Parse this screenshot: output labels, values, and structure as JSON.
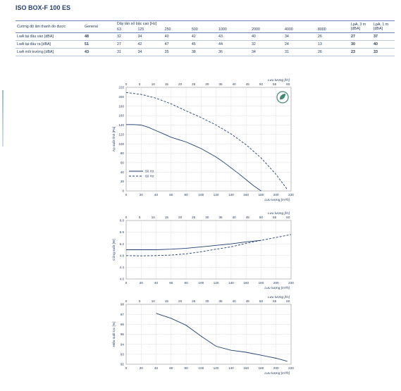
{
  "title": "ISO BOX-F 100 ES",
  "table": {
    "col_label": "Cường độ âm thanh đo được",
    "col_general": "General",
    "col_band_header": "Dãy tần số bậc cao [Hz]",
    "bands": [
      "63",
      "125",
      "250",
      "500",
      "1000",
      "2000",
      "4000",
      "8000"
    ],
    "col_lpa3": "LpA, 3 m [dBA]",
    "col_lpa1": "LpA, 1 m [dBA]",
    "rows": [
      {
        "label": "LwA tại đầu vào [dBA]",
        "general": "48",
        "bands": [
          "32",
          "34",
          "40",
          "42",
          "43",
          "40",
          "34",
          "26"
        ],
        "lpa3": "27",
        "lpa1": "37"
      },
      {
        "label": "LwA tại đầu ra [dBA]",
        "general": "51",
        "bands": [
          "27",
          "42",
          "47",
          "45",
          "44",
          "32",
          "24",
          "13"
        ],
        "lpa3": "30",
        "lpa1": "40"
      },
      {
        "label": "LwA môi trường [dBA]",
        "general": "43",
        "bands": [
          "31",
          "34",
          "35",
          "38",
          "36",
          "34",
          "31",
          "26"
        ],
        "lpa3": "23",
        "lpa1": "33"
      }
    ]
  },
  "chart_data": [
    {
      "type": "line",
      "ylabel": "Áp suất tĩnh [Pa]",
      "xlabel": "Lưu lượng [m³/h]",
      "x2label": "Lưu lượng [l/s]",
      "xlim": [
        0,
        220
      ],
      "ylim": [
        0,
        220
      ],
      "x_ticks": [
        0,
        20,
        40,
        60,
        80,
        100,
        120,
        140,
        160,
        180,
        200,
        220
      ],
      "x2_ticks": [
        0,
        5,
        10,
        15,
        20,
        25,
        30,
        35,
        40,
        45,
        50,
        55,
        60
      ],
      "y_ticks": [
        0,
        20,
        40,
        60,
        80,
        100,
        120,
        140,
        160,
        180,
        200,
        220
      ],
      "y_tick_labels": [
        "0",
        "20",
        "40",
        "60",
        "80",
        "100",
        "120",
        "140",
        "160",
        "180",
        "200",
        "220"
      ],
      "legend_position": "bottom-left",
      "series": [
        {
          "name": "50 Hz",
          "dash": "solid",
          "x": [
            0,
            10,
            20,
            30,
            40,
            50,
            60,
            70,
            80,
            90,
            100,
            110,
            120,
            130,
            140,
            150,
            160,
            170,
            180
          ],
          "y": [
            141,
            141,
            140,
            135,
            128,
            121,
            114,
            109,
            104,
            97,
            90,
            81,
            72,
            61,
            49,
            37,
            24,
            11,
            0
          ]
        },
        {
          "name": "60 Hz",
          "dash": "dashed",
          "x": [
            0,
            20,
            40,
            60,
            80,
            100,
            120,
            140,
            160,
            180,
            200,
            215
          ],
          "y": [
            209,
            205,
            197,
            185,
            170,
            156,
            140,
            121,
            98,
            70,
            35,
            3
          ]
        }
      ]
    },
    {
      "type": "line",
      "ylabel": "Công suất [W]",
      "xlabel": "Lưu lượng [m³/h]",
      "x2label": "Lưu lượng [l/s]",
      "xlim": [
        0,
        220
      ],
      "ylim": [
        4.0,
        6.0
      ],
      "x_ticks": [
        0,
        20,
        40,
        60,
        80,
        100,
        120,
        140,
        160,
        180,
        200,
        220
      ],
      "x2_ticks": [
        0,
        5,
        10,
        15,
        20,
        25,
        30,
        35,
        40,
        45,
        50,
        55,
        60
      ],
      "y_ticks": [
        4.0,
        4.4,
        4.8,
        5.2,
        5.6,
        6.0
      ],
      "y_tick_labels": [
        "4.0",
        "4.4",
        "4.8",
        "5.2",
        "5.6",
        "6.0"
      ],
      "series": [
        {
          "name": "50 Hz",
          "dash": "solid",
          "x": [
            0,
            20,
            40,
            60,
            80,
            100,
            120,
            140,
            160,
            180
          ],
          "y": [
            5.0,
            5.0,
            5.0,
            5.02,
            5.05,
            5.1,
            5.15,
            5.2,
            5.27,
            5.32
          ]
        },
        {
          "name": "60 Hz",
          "dash": "dashed",
          "x": [
            0,
            20,
            40,
            60,
            80,
            100,
            120,
            140,
            160,
            180,
            200,
            220
          ],
          "y": [
            4.8,
            4.79,
            4.8,
            4.82,
            4.86,
            4.93,
            5.02,
            5.1,
            5.22,
            5.32,
            5.42,
            5.52
          ]
        }
      ]
    },
    {
      "type": "line",
      "ylabel": "Hiệu suất lọc [%]",
      "xlabel": "Lưu lượng [m³/h]",
      "x2label": "Lưu lượng [l/s]",
      "xlim": [
        0,
        220
      ],
      "ylim": [
        92,
        98
      ],
      "x_ticks": [
        0,
        20,
        40,
        60,
        80,
        100,
        120,
        140,
        160,
        180,
        200,
        220
      ],
      "x2_ticks": [
        0,
        5,
        10,
        15,
        20,
        25,
        30,
        35,
        40,
        45,
        50,
        55,
        60
      ],
      "y_ticks": [
        92,
        93,
        94,
        95,
        96,
        97,
        98
      ],
      "y_tick_labels": [
        "92",
        "93",
        "94",
        "95",
        "96",
        "97",
        "98"
      ],
      "series": [
        {
          "name": "",
          "dash": "solid",
          "x": [
            40,
            60,
            80,
            100,
            120,
            140,
            160,
            180,
            200,
            215
          ],
          "y": [
            97.1,
            96.6,
            95.9,
            94.8,
            93.8,
            93.4,
            93.2,
            92.9,
            92.6,
            92.3
          ]
        }
      ]
    }
  ],
  "colors": {
    "line": "#1f3f75",
    "grid": "#b7b7b7",
    "border": "#6b86b8",
    "badge": "#3e8b6e"
  },
  "icon": "leaf-circle-icon"
}
